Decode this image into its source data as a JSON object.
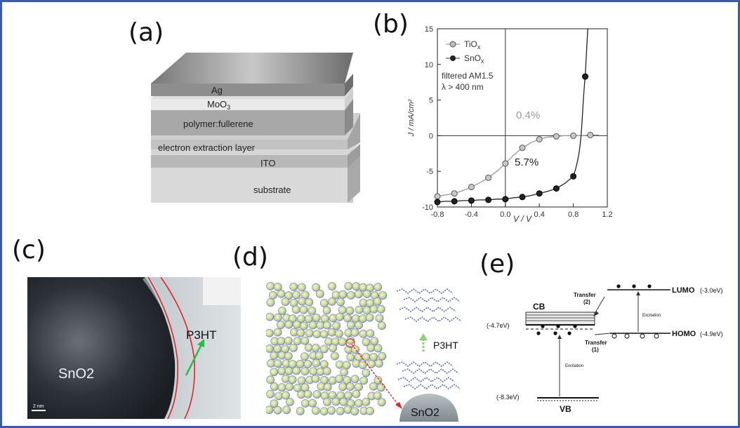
{
  "panels": {
    "a": {
      "label": "(a)",
      "layers": [
        "Ag",
        "MoO3",
        "polymer:fullerene",
        "electron extraction layer",
        "ITO",
        "substrate"
      ]
    },
    "b": {
      "label": "(b)",
      "legend": [
        "TiOx",
        "SnOx"
      ],
      "annotation_line1": "filtered AM1.5",
      "annotation_line2": "λ > 400 nm",
      "eff_tio": "0.4%",
      "eff_sno": "5.7%",
      "xlabel": "V / V",
      "ylabel": "J / mA/cm²"
    },
    "c": {
      "label": "(c)",
      "material": "SnO2",
      "polymer": "P3HT",
      "scale": "2 nm"
    },
    "d": {
      "label": "(d)",
      "polymer": "P3HT",
      "material": "SnO2"
    },
    "e": {
      "label": "(e)",
      "cb": "CB",
      "vb": "VB",
      "lumo": "LUMO",
      "lumo_val": "(-3.0eV)",
      "homo": "HOMO",
      "homo_val": "(-4.9eV)",
      "cb_val": "(-4.7eV)",
      "vb_val": "(-8.3eV)",
      "transfer2": "Transfer",
      "transfer2_n": "(2)",
      "transfer1": "Transfer",
      "transfer1_n": "(1)",
      "excitation": "Excitation"
    }
  },
  "chart_data": {
    "type": "line",
    "xlabel": "V / V",
    "ylabel": "J / mA/cm²",
    "xlim": [
      -0.8,
      1.2
    ],
    "ylim": [
      -10,
      15
    ],
    "xticks": [
      -0.8,
      -0.4,
      0.0,
      0.4,
      0.8,
      1.2
    ],
    "yticks": [
      -10,
      -5,
      0,
      5,
      10,
      15
    ],
    "series": [
      {
        "name": "TiOx",
        "color": "#999999",
        "x": [
          -0.8,
          -0.7,
          -0.6,
          -0.5,
          -0.4,
          -0.3,
          -0.2,
          -0.1,
          0.0,
          0.1,
          0.2,
          0.3,
          0.4,
          0.5,
          0.6,
          0.7,
          0.8,
          0.9,
          1.0,
          1.1
        ],
        "y": [
          -8.5,
          -8.3,
          -8.1,
          -7.7,
          -7.2,
          -6.6,
          -5.9,
          -5.0,
          -3.9,
          -2.7,
          -1.7,
          -1.0,
          -0.5,
          -0.2,
          -0.1,
          0.0,
          0.0,
          0.0,
          0.1,
          0.1
        ]
      },
      {
        "name": "SnOx",
        "color": "#222222",
        "x": [
          -0.8,
          -0.7,
          -0.6,
          -0.5,
          -0.4,
          -0.3,
          -0.2,
          -0.1,
          0.0,
          0.1,
          0.2,
          0.3,
          0.4,
          0.5,
          0.6,
          0.7,
          0.8,
          0.94
        ],
        "y": [
          -9.3,
          -9.2,
          -9.2,
          -9.1,
          -9.1,
          -9.0,
          -9.0,
          -8.9,
          -8.9,
          -8.7,
          -8.6,
          -8.4,
          -8.1,
          -7.8,
          -7.4,
          -6.7,
          -5.7,
          8.3
        ]
      }
    ]
  }
}
